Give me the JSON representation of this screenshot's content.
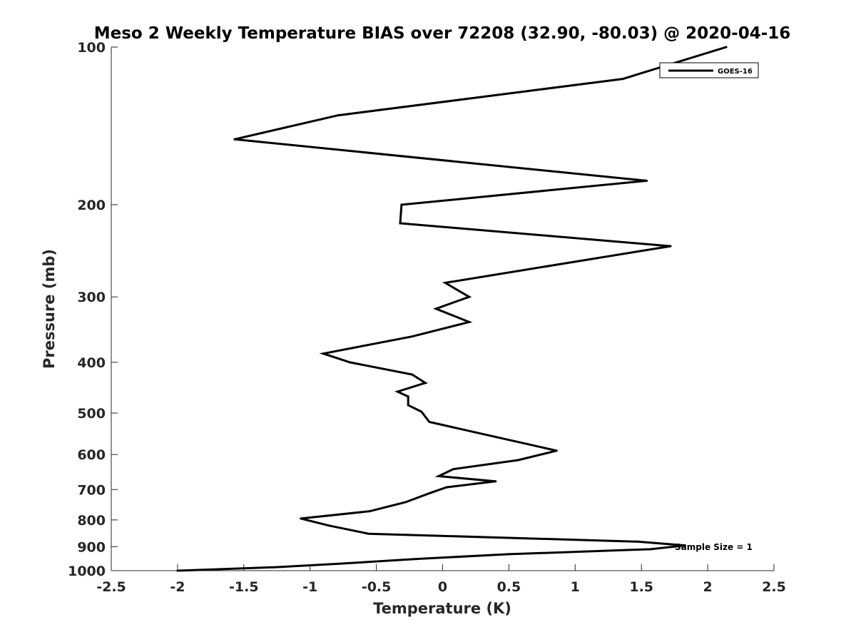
{
  "chart_data": {
    "type": "line",
    "title": "Meso 2 Weekly Temperature BIAS over 72208 (32.90, -80.03) @ 2020-04-16",
    "xlabel": "Temperature (K)",
    "ylabel": "Pressure (mb)",
    "xlim": [
      -2.5,
      2.5
    ],
    "ylim": [
      1000,
      100
    ],
    "yscale": "log",
    "y_reversed": true,
    "grid": false,
    "legend_position": "top-right",
    "xticks": [
      "-2.5",
      "-2",
      "-1.5",
      "-1",
      "-0.5",
      "0",
      "0.5",
      "1",
      "1.5",
      "2",
      "2.5"
    ],
    "xtick_values": [
      -2.5,
      -2,
      -1.5,
      -1,
      -0.5,
      0,
      0.5,
      1,
      1.5,
      2,
      2.5
    ],
    "yticks": [
      "100",
      "200",
      "300",
      "400",
      "500",
      "600",
      "700",
      "800",
      "900",
      "1000"
    ],
    "ytick_values": [
      100,
      200,
      300,
      400,
      500,
      600,
      700,
      800,
      900,
      1000
    ],
    "series": [
      {
        "name": "GOES-16",
        "color": "#000000",
        "x": [
          2.14,
          1.36,
          -0.79,
          -1.57,
          1.54,
          -0.31,
          -0.32,
          1.72,
          0.02,
          0.2,
          -0.05,
          0.2,
          -0.23,
          -0.9,
          -0.7,
          -0.23,
          -0.13,
          -0.34,
          -0.26,
          -0.26,
          -0.16,
          -0.1,
          0.86,
          0.57,
          0.08,
          -0.03,
          0.4,
          0.03,
          -0.09,
          -0.28,
          -0.55,
          -1.07,
          -0.86,
          -0.56,
          1.47,
          1.83,
          1.57,
          0.5,
          -0.2,
          -0.78,
          -1.27,
          -2.0
        ],
        "y": [
          100,
          115,
          135,
          150,
          180,
          200,
          217,
          240,
          282,
          300,
          316,
          335,
          357,
          385,
          400,
          422,
          438,
          455,
          465,
          483,
          497,
          520,
          590,
          615,
          640,
          660,
          675,
          693,
          710,
          740,
          770,
          795,
          820,
          850,
          880,
          895,
          910,
          930,
          950,
          970,
          985,
          1000
        ]
      }
    ],
    "annotations": [
      {
        "text": "Sample Size = 1"
      }
    ]
  }
}
